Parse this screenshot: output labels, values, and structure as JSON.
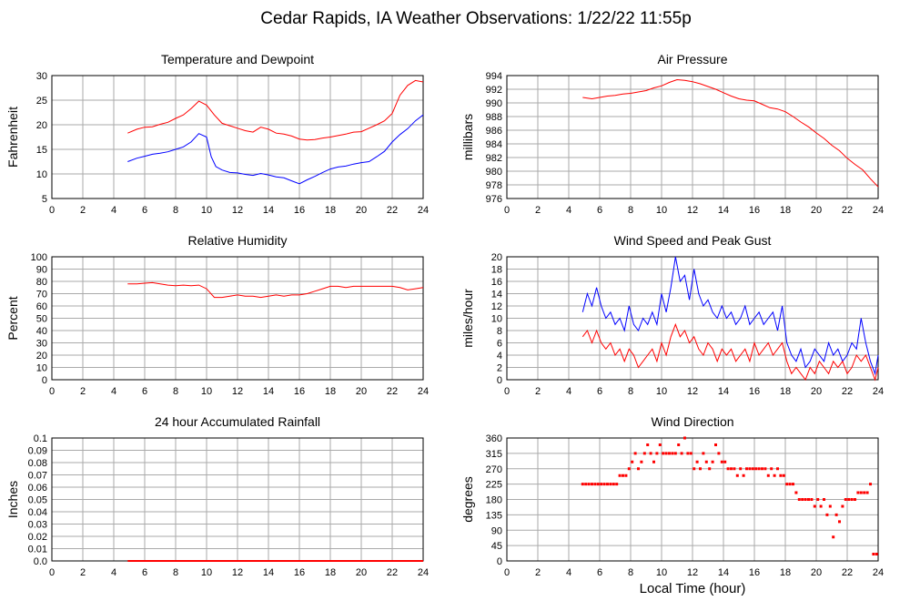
{
  "page": {
    "title": "Cedar Rapids, IA Weather Observations: 1/22/22 11:55p",
    "xlabel_bottom": "Local Time (hour)"
  },
  "colors": {
    "red": "#ff0000",
    "blue": "#0000ff",
    "grid": "#aaaaaa",
    "frame": "#000000"
  },
  "chart_data": [
    {
      "id": "temp",
      "type": "line",
      "title": "Temperature and Dewpoint",
      "xlabel": "",
      "ylabel": "Fahrenheit",
      "xlim": [
        0,
        24
      ],
      "ylim": [
        5,
        30
      ],
      "xticks": [
        0,
        2,
        4,
        6,
        8,
        10,
        12,
        14,
        16,
        18,
        20,
        22,
        24
      ],
      "yticks": [
        5,
        10,
        15,
        20,
        25,
        30
      ],
      "series": [
        {
          "color": "#ff0000",
          "x": [
            4.9,
            5.5,
            6,
            6.5,
            7,
            7.5,
            8,
            8.5,
            9,
            9.5,
            10,
            10.5,
            11,
            11.5,
            12,
            12.5,
            13,
            13.5,
            14,
            14.5,
            15,
            15.5,
            16,
            16.5,
            17,
            17.5,
            18,
            18.5,
            19,
            19.5,
            20,
            20.5,
            21,
            21.5,
            22,
            22.5,
            23,
            23.5,
            24
          ],
          "y": [
            18.3,
            19.1,
            19.5,
            19.6,
            20.1,
            20.5,
            21.3,
            22,
            23.3,
            24.8,
            24,
            22,
            20.3,
            19.8,
            19.3,
            18.8,
            18.5,
            19.5,
            19.1,
            18.3,
            18.1,
            17.7,
            17.1,
            16.9,
            17,
            17.3,
            17.5,
            17.8,
            18.1,
            18.5,
            18.6,
            19.3,
            20,
            20.8,
            22.3,
            26,
            28,
            29,
            28.7
          ]
        },
        {
          "color": "#0000ff",
          "x": [
            4.9,
            5.5,
            6,
            6.5,
            7,
            7.5,
            8,
            8.5,
            9,
            9.5,
            10,
            10.3,
            10.6,
            11,
            11.5,
            12,
            12.5,
            13,
            13.5,
            14,
            14.5,
            15,
            15.5,
            16,
            16.5,
            17,
            17.5,
            18,
            18.5,
            19,
            19.5,
            20,
            20.5,
            21,
            21.5,
            22,
            22.5,
            23,
            23.5,
            24
          ],
          "y": [
            12.5,
            13.2,
            13.6,
            14,
            14.2,
            14.5,
            15,
            15.5,
            16.5,
            18.2,
            17.5,
            13.5,
            11.5,
            10.8,
            10.3,
            10.2,
            9.9,
            9.7,
            10.1,
            9.8,
            9.4,
            9.2,
            8.6,
            8,
            8.8,
            9.5,
            10.3,
            11,
            11.4,
            11.6,
            12,
            12.3,
            12.5,
            13.5,
            14.6,
            16.5,
            18,
            19.2,
            20.8,
            22
          ]
        }
      ]
    },
    {
      "id": "pres",
      "type": "line",
      "title": "Air Pressure",
      "xlabel": "",
      "ylabel": "millibars",
      "xlim": [
        0,
        24
      ],
      "ylim": [
        976,
        994
      ],
      "xticks": [
        0,
        2,
        4,
        6,
        8,
        10,
        12,
        14,
        16,
        18,
        20,
        22,
        24
      ],
      "yticks": [
        976,
        978,
        980,
        982,
        984,
        986,
        988,
        990,
        992,
        994
      ],
      "series": [
        {
          "color": "#ff0000",
          "x": [
            4.9,
            5.5,
            6,
            6.5,
            7,
            7.5,
            8,
            8.5,
            9,
            9.5,
            10,
            10.5,
            11,
            11.5,
            12,
            12.5,
            13,
            13.5,
            14,
            14.5,
            15,
            15.5,
            16,
            16.5,
            17,
            17.5,
            18,
            18.5,
            19,
            19.5,
            20,
            20.5,
            21,
            21.5,
            22,
            22.5,
            23,
            23.5,
            24
          ],
          "y": [
            990.8,
            990.6,
            990.8,
            991,
            991.1,
            991.3,
            991.4,
            991.6,
            991.8,
            992.2,
            992.5,
            993,
            993.4,
            993.3,
            993.1,
            992.8,
            992.4,
            992,
            991.5,
            991,
            990.6,
            990.4,
            990.3,
            989.8,
            989.3,
            989.1,
            988.7,
            988,
            987.2,
            986.5,
            985.6,
            984.8,
            983.8,
            983,
            981.9,
            981,
            980.2,
            978.9,
            977.7
          ]
        }
      ]
    },
    {
      "id": "rh",
      "type": "line",
      "title": "Relative Humidity",
      "xlabel": "",
      "ylabel": "Percent",
      "xlim": [
        0,
        24
      ],
      "ylim": [
        0,
        100
      ],
      "xticks": [
        0,
        2,
        4,
        6,
        8,
        10,
        12,
        14,
        16,
        18,
        20,
        22,
        24
      ],
      "yticks": [
        0,
        10,
        20,
        30,
        40,
        50,
        60,
        70,
        80,
        90,
        100
      ],
      "series": [
        {
          "color": "#ff0000",
          "x": [
            4.9,
            5.5,
            6,
            6.5,
            7,
            7.5,
            8,
            8.5,
            9,
            9.5,
            10,
            10.5,
            11,
            11.5,
            12,
            12.5,
            13,
            13.5,
            14,
            14.5,
            15,
            15.5,
            16,
            16.5,
            17,
            17.5,
            18,
            18.5,
            19,
            19.5,
            20,
            20.5,
            21,
            21.5,
            22,
            22.5,
            23,
            23.5,
            24
          ],
          "y": [
            78,
            78,
            78.5,
            79,
            78,
            77,
            76.5,
            77,
            76.5,
            77,
            74,
            67,
            67,
            68,
            69,
            68,
            68,
            67,
            68,
            69,
            68,
            69,
            69,
            70,
            72,
            74,
            76,
            76,
            75,
            76,
            76,
            76,
            76,
            76,
            76,
            75,
            73,
            74,
            75
          ]
        }
      ]
    },
    {
      "id": "wind",
      "type": "line",
      "title": "Wind Speed and Peak Gust",
      "xlabel": "",
      "ylabel": "miles/hour",
      "xlim": [
        0,
        24
      ],
      "ylim": [
        0,
        20
      ],
      "xticks": [
        0,
        2,
        4,
        6,
        8,
        10,
        12,
        14,
        16,
        18,
        20,
        22,
        24
      ],
      "yticks": [
        0,
        2,
        4,
        6,
        8,
        10,
        12,
        14,
        16,
        18,
        20
      ],
      "series": [
        {
          "color": "#0000ff",
          "x": [
            4.9,
            5.2,
            5.5,
            5.8,
            6.1,
            6.4,
            6.7,
            7,
            7.3,
            7.6,
            7.9,
            8.2,
            8.5,
            8.8,
            9.1,
            9.4,
            9.7,
            10,
            10.3,
            10.6,
            10.9,
            11.2,
            11.5,
            11.8,
            12.1,
            12.4,
            12.7,
            13,
            13.3,
            13.6,
            13.9,
            14.2,
            14.5,
            14.8,
            15.1,
            15.4,
            15.7,
            16,
            16.3,
            16.6,
            16.9,
            17.2,
            17.5,
            17.8,
            18.1,
            18.4,
            18.7,
            19,
            19.3,
            19.6,
            19.9,
            20.2,
            20.5,
            20.8,
            21.1,
            21.4,
            21.7,
            22,
            22.3,
            22.6,
            22.9,
            23.2,
            23.5,
            23.8,
            24
          ],
          "y": [
            11,
            14,
            12,
            15,
            12,
            10,
            11,
            9,
            10,
            8,
            12,
            9,
            8,
            10,
            9,
            11,
            9,
            14,
            11,
            15,
            20,
            16,
            17,
            13,
            18,
            14,
            12,
            13,
            11,
            10,
            12,
            10,
            11,
            9,
            10,
            12,
            9,
            10,
            11,
            9,
            10,
            11,
            8,
            12,
            6,
            4,
            3,
            5,
            2,
            3,
            5,
            4,
            3,
            6,
            4,
            5,
            3,
            4,
            6,
            5,
            10,
            6,
            3,
            1,
            4
          ]
        },
        {
          "color": "#ff0000",
          "x": [
            4.9,
            5.2,
            5.5,
            5.8,
            6.1,
            6.4,
            6.7,
            7,
            7.3,
            7.6,
            7.9,
            8.2,
            8.5,
            8.8,
            9.1,
            9.4,
            9.7,
            10,
            10.3,
            10.6,
            10.9,
            11.2,
            11.5,
            11.8,
            12.1,
            12.4,
            12.7,
            13,
            13.3,
            13.6,
            13.9,
            14.2,
            14.5,
            14.8,
            15.1,
            15.4,
            15.7,
            16,
            16.3,
            16.6,
            16.9,
            17.2,
            17.5,
            17.8,
            18.1,
            18.4,
            18.7,
            19,
            19.3,
            19.6,
            19.9,
            20.2,
            20.5,
            20.8,
            21.1,
            21.4,
            21.7,
            22,
            22.3,
            22.6,
            22.9,
            23.2,
            23.5,
            23.8,
            24
          ],
          "y": [
            7,
            8,
            6,
            8,
            6,
            5,
            6,
            4,
            5,
            3,
            5,
            4,
            2,
            3,
            4,
            5,
            3,
            6,
            4,
            7,
            9,
            7,
            8,
            6,
            7,
            5,
            4,
            6,
            5,
            3,
            5,
            4,
            5,
            3,
            4,
            5,
            3,
            6,
            4,
            5,
            6,
            4,
            5,
            6,
            3,
            1,
            2,
            1,
            0,
            2,
            1,
            3,
            2,
            1,
            3,
            2,
            3,
            1,
            2,
            4,
            3,
            4,
            2,
            0,
            2
          ]
        }
      ]
    },
    {
      "id": "rain",
      "type": "line",
      "title": "24 hour Accumulated Rainfall",
      "xlabel": "",
      "ylabel": "Inches",
      "xlim": [
        0,
        24
      ],
      "ylim": [
        0,
        0.1
      ],
      "xticks": [
        0,
        2,
        4,
        6,
        8,
        10,
        12,
        14,
        16,
        18,
        20,
        22,
        24
      ],
      "yticks": [
        0.0,
        0.01,
        0.02,
        0.03,
        0.04,
        0.05,
        0.06,
        0.07,
        0.08,
        0.09,
        0.1
      ],
      "ytick_labels": [
        "0.0",
        "0.01",
        "0.02",
        "0.03",
        "0.04",
        "0.05",
        "0.06",
        "0.07",
        "0.08",
        "0.09",
        "0.1"
      ],
      "series": [
        {
          "color": "#ff0000",
          "x": [
            4.9,
            24
          ],
          "y": [
            0,
            0
          ]
        }
      ]
    },
    {
      "id": "wdir",
      "type": "scatter",
      "title": "Wind Direction",
      "xlabel": "Local Time (hour)",
      "ylabel": "degrees",
      "xlim": [
        0,
        24
      ],
      "ylim": [
        0,
        360
      ],
      "xticks": [
        0,
        2,
        4,
        6,
        8,
        10,
        12,
        14,
        16,
        18,
        20,
        22,
        24
      ],
      "yticks": [
        0,
        45,
        90,
        135,
        180,
        225,
        270,
        315,
        360
      ],
      "series": [
        {
          "color": "#ff0000",
          "x": [
            4.9,
            5.1,
            5.3,
            5.5,
            5.7,
            5.9,
            6.1,
            6.3,
            6.5,
            6.7,
            6.9,
            7.1,
            7.3,
            7.5,
            7.7,
            7.9,
            8.1,
            8.3,
            8.5,
            8.7,
            8.9,
            9.1,
            9.3,
            9.5,
            9.7,
            9.9,
            10.1,
            10.3,
            10.5,
            10.7,
            10.9,
            11.1,
            11.3,
            11.5,
            11.7,
            11.9,
            12.1,
            12.3,
            12.5,
            12.7,
            12.9,
            13.1,
            13.3,
            13.5,
            13.7,
            13.9,
            14.1,
            14.3,
            14.5,
            14.7,
            14.9,
            15.1,
            15.3,
            15.5,
            15.7,
            15.9,
            16.1,
            16.3,
            16.5,
            16.7,
            16.9,
            17.1,
            17.3,
            17.5,
            17.7,
            17.9,
            18.1,
            18.3,
            18.5,
            18.7,
            18.9,
            19.1,
            19.3,
            19.5,
            19.7,
            19.9,
            20.1,
            20.3,
            20.5,
            20.7,
            20.9,
            21.1,
            21.3,
            21.5,
            21.7,
            21.9,
            22.1,
            22.3,
            22.5,
            22.7,
            22.9,
            23.1,
            23.3,
            23.5,
            23.7,
            23.9
          ],
          "y": [
            225,
            225,
            225,
            225,
            225,
            225,
            225,
            225,
            225,
            225,
            225,
            225,
            250,
            250,
            250,
            270,
            290,
            315,
            270,
            290,
            315,
            340,
            315,
            290,
            315,
            340,
            315,
            315,
            315,
            315,
            315,
            340,
            315,
            360,
            315,
            315,
            270,
            290,
            270,
            315,
            290,
            270,
            290,
            340,
            315,
            290,
            290,
            270,
            270,
            270,
            250,
            270,
            250,
            270,
            270,
            270,
            270,
            270,
            270,
            270,
            250,
            270,
            250,
            270,
            250,
            250,
            225,
            225,
            225,
            200,
            180,
            180,
            180,
            180,
            180,
            160,
            180,
            160,
            180,
            135,
            160,
            70,
            135,
            115,
            160,
            180,
            180,
            180,
            180,
            200,
            200,
            200,
            200,
            225,
            20,
            20
          ]
        }
      ]
    }
  ]
}
